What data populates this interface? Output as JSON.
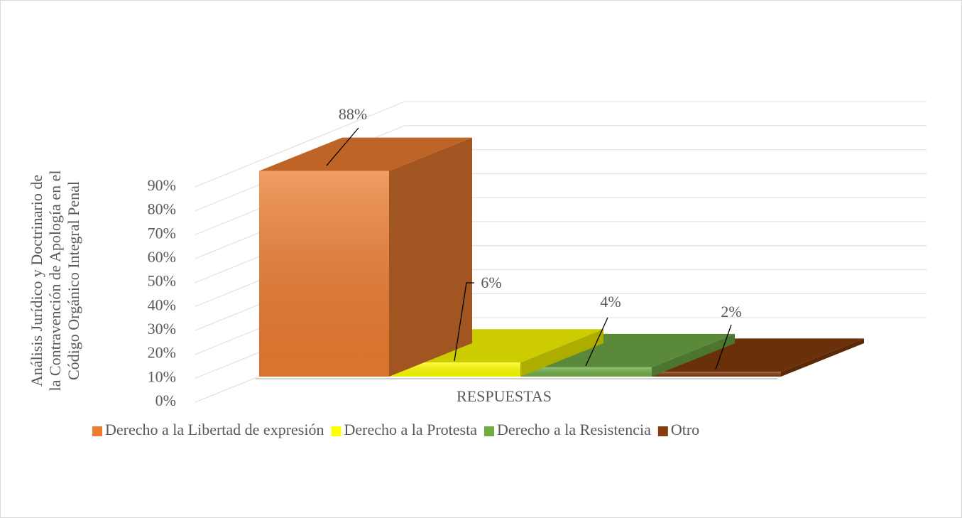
{
  "chart_data": {
    "type": "bar3d",
    "categories": [
      "RESPUESTAS"
    ],
    "ylabel": [
      "Análisis Jurídico y Doctrinario de",
      "la Contravención de Apología en el",
      "Código Orgánico Integral Penal"
    ],
    "series": [
      {
        "name": "Derecho a la Libertad de expresión",
        "color": "#ed7d31",
        "values": [
          88
        ],
        "value_labels": [
          "88%"
        ]
      },
      {
        "name": "Derecho a la Protesta",
        "color": "#ffff00",
        "values": [
          6
        ],
        "value_labels": [
          "6%"
        ]
      },
      {
        "name": "Derecho a la Resistencia",
        "color": "#70ad47",
        "values": [
          4
        ],
        "value_labels": [
          "4%"
        ]
      },
      {
        "name": "Otro",
        "color": "#843c0c",
        "values": [
          2
        ],
        "value_labels": [
          "2%"
        ]
      }
    ],
    "ylim": [
      0,
      90
    ],
    "yticks": [
      {
        "value": 0,
        "label": "0%"
      },
      {
        "value": 10,
        "label": "10%"
      },
      {
        "value": 20,
        "label": "20%"
      },
      {
        "value": 30,
        "label": "30%"
      },
      {
        "value": 40,
        "label": "40%"
      },
      {
        "value": 50,
        "label": "50%"
      },
      {
        "value": 60,
        "label": "60%"
      },
      {
        "value": 70,
        "label": "70%"
      },
      {
        "value": 80,
        "label": "80%"
      },
      {
        "value": 90,
        "label": "90%"
      }
    ],
    "grid": true,
    "legend": "bottom"
  }
}
